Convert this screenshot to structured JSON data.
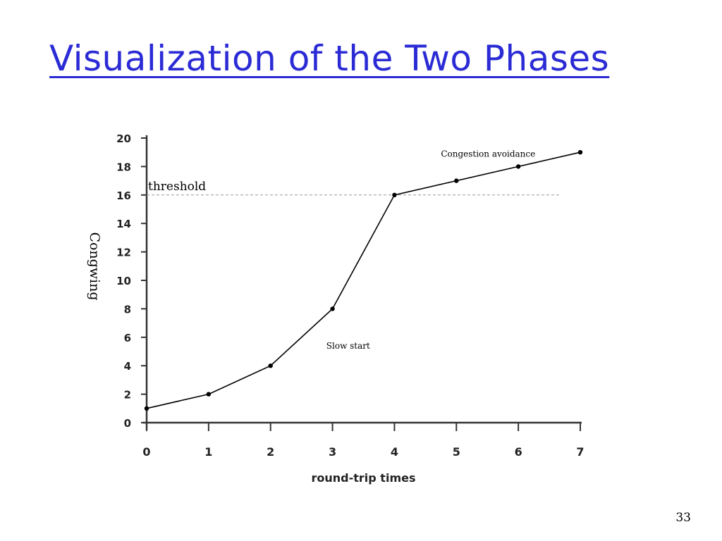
{
  "slide": {
    "title": "Visualization of the Two Phases",
    "page_number": "33",
    "title_color": "#2b2bd6"
  },
  "chart_data": {
    "type": "line",
    "title": "",
    "xlabel": "round-trip times",
    "ylabel": "Congwing",
    "xlim": [
      0,
      7
    ],
    "ylim": [
      0,
      20
    ],
    "x_ticks": [
      0,
      1,
      2,
      3,
      4,
      5,
      6,
      7
    ],
    "y_ticks": [
      0,
      2,
      4,
      6,
      8,
      10,
      12,
      14,
      16,
      18,
      20
    ],
    "series": [
      {
        "x": [
          0,
          1,
          2,
          3,
          4,
          5,
          6,
          7
        ],
        "values": [
          1,
          2,
          4,
          8,
          16,
          17,
          18,
          19
        ]
      }
    ],
    "threshold": {
      "value": 16,
      "label": "threshold"
    },
    "annotations": [
      {
        "text": "Congestion avoidance",
        "x": 4.75,
        "y": 18.7
      },
      {
        "text": "Slow start",
        "x": 2.9,
        "y": 5.2
      }
    ],
    "grid": false,
    "line_color": "#000000",
    "threshold_color": "#999999"
  }
}
